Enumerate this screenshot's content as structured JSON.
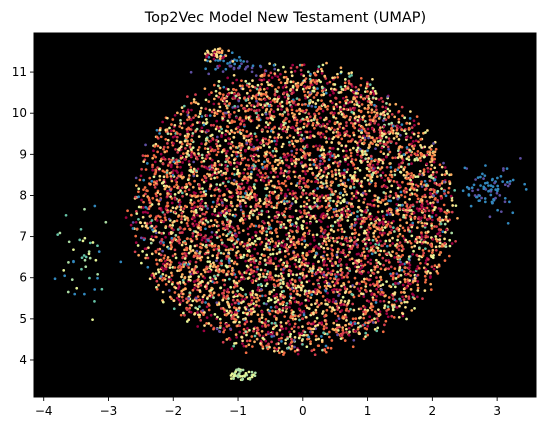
{
  "chart_data": {
    "type": "scatter",
    "title": "Top2Vec Model New Testament (UMAP)",
    "xlabel": "",
    "ylabel": "",
    "xlim": [
      -4.15,
      3.6
    ],
    "ylim": [
      3.1,
      11.95
    ],
    "xticks": [
      -4,
      -3,
      -2,
      -1,
      0,
      1,
      2,
      3
    ],
    "yticks": [
      4,
      5,
      6,
      7,
      8,
      9,
      10,
      11
    ],
    "grid": false,
    "legend": "none",
    "background": "#000000",
    "colormap": "Spectral",
    "palette": [
      "#9e0142",
      "#d53e4f",
      "#f46d43",
      "#fdae61",
      "#fee08b",
      "#e6f598",
      "#abdda4",
      "#66c2a5",
      "#3288bd",
      "#5e4fa2"
    ],
    "point_count_estimate": 6000,
    "cluster": {
      "shape": "roughly elliptical cloud of document points",
      "x_extent": [
        -3.7,
        3.25
      ],
      "y_extent": [
        3.55,
        11.55
      ],
      "dense_core": {
        "x": [
          -2.6,
          2.3
        ],
        "y": [
          4.2,
          11.1
        ]
      },
      "notable_clumps": [
        {
          "description": "blue/purple tail on right edge",
          "x": [
            2.4,
            3.25
          ],
          "y": [
            7.6,
            8.6
          ]
        },
        {
          "description": "blue cluster near top",
          "x": [
            -1.5,
            -0.6
          ],
          "y": [
            11.0,
            11.35
          ]
        },
        {
          "description": "mixed points at top peak",
          "x": [
            -1.5,
            -1.2
          ],
          "y": [
            11.3,
            11.55
          ]
        },
        {
          "description": "teal/green clump left",
          "x": [
            -3.7,
            -3.0
          ],
          "y": [
            5.5,
            7.5
          ]
        },
        {
          "description": "pale green points at bottom",
          "x": [
            -1.1,
            -0.8
          ],
          "y": [
            3.55,
            3.75
          ]
        }
      ]
    }
  }
}
